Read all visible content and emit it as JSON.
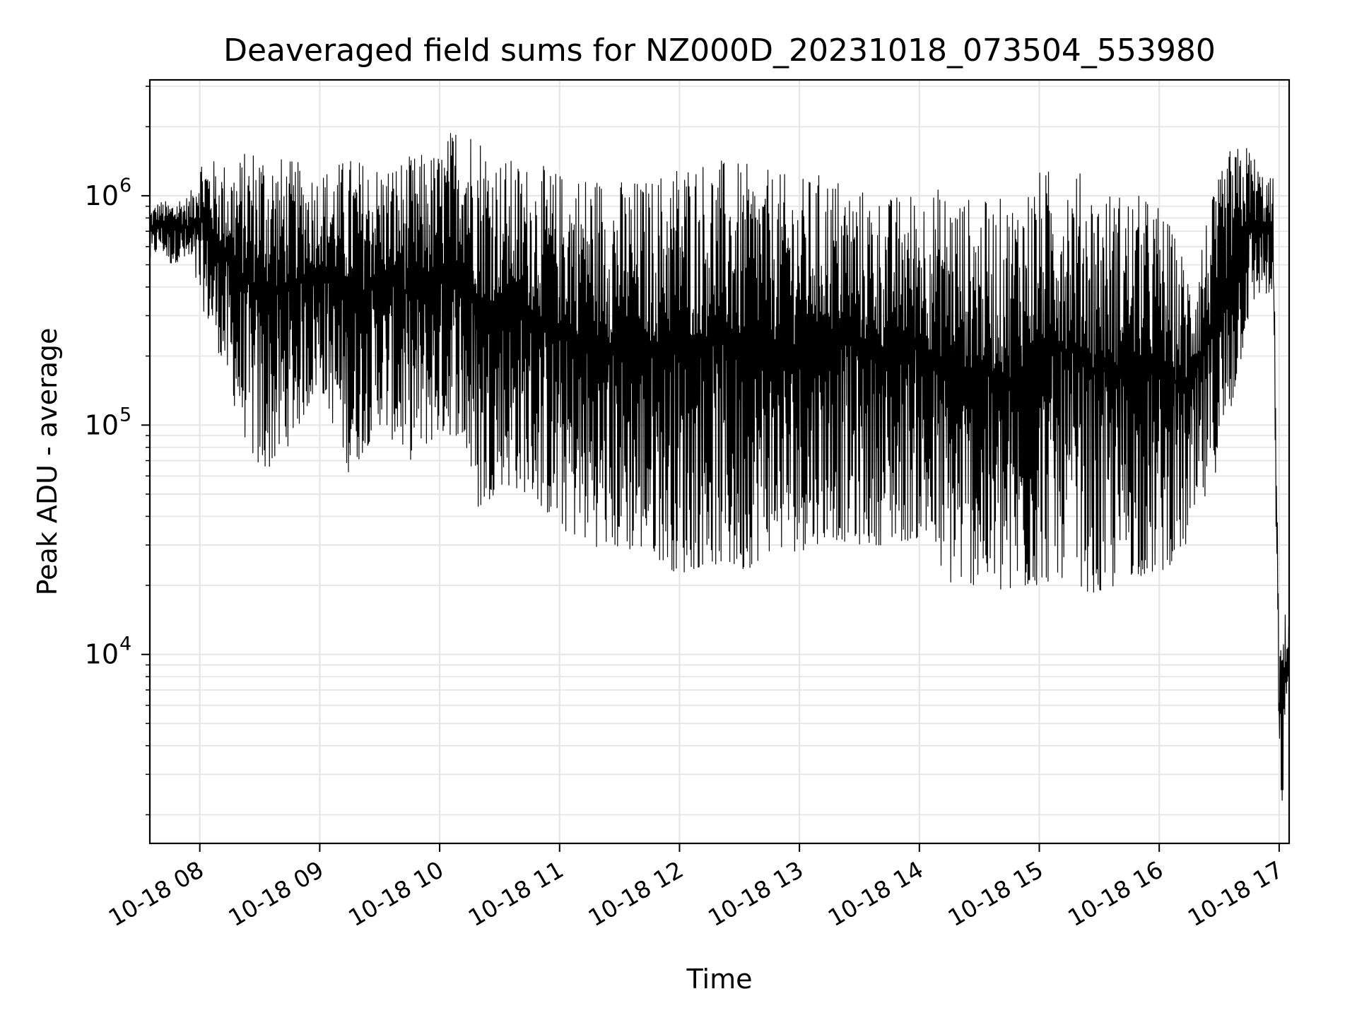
{
  "chart_data": {
    "type": "line",
    "title": "Deaveraged field sums for NZ000D_20231018_073504_553980",
    "xlabel": "Time",
    "ylabel": "Peak ADU - average",
    "yscale": "log",
    "grid": true,
    "line_color": "#000000",
    "grid_color": "#e6e6e6",
    "x_tick_labels": [
      "10-18 08",
      "10-18 09",
      "10-18 10",
      "10-18 11",
      "10-18 12",
      "10-18 13",
      "10-18 14",
      "10-18 15",
      "10-18 16",
      "10-18 17"
    ],
    "y_tick_labels": [
      {
        "base": "10",
        "exp": "4",
        "value": 10000
      },
      {
        "base": "10",
        "exp": "5",
        "value": 100000
      },
      {
        "base": "10",
        "exp": "6",
        "value": 1000000
      }
    ],
    "xlim": [
      "2023-10-18 07:35",
      "2023-10-18 17:05"
    ],
    "ylim": [
      1500,
      3200000
    ],
    "series": [
      {
        "x": [
          "2023-10-18 07:35",
          "2023-10-18 07:40",
          "2023-10-18 07:45",
          "2023-10-18 07:50",
          "2023-10-18 07:55",
          "2023-10-18 08:00",
          "2023-10-18 08:10",
          "2023-10-18 08:20",
          "2023-10-18 08:30",
          "2023-10-18 08:40",
          "2023-10-18 08:50",
          "2023-10-18 09:00",
          "2023-10-18 09:15",
          "2023-10-18 09:30",
          "2023-10-18 09:45",
          "2023-10-18 10:00",
          "2023-10-18 10:10",
          "2023-10-18 10:20",
          "2023-10-18 10:30",
          "2023-10-18 10:45",
          "2023-10-18 11:00",
          "2023-10-18 11:15",
          "2023-10-18 11:30",
          "2023-10-18 11:45",
          "2023-10-18 12:00",
          "2023-10-18 12:15",
          "2023-10-18 12:30",
          "2023-10-18 12:45",
          "2023-10-18 13:00",
          "2023-10-18 13:15",
          "2023-10-18 13:30",
          "2023-10-18 13:45",
          "2023-10-18 14:00",
          "2023-10-18 14:15",
          "2023-10-18 14:30",
          "2023-10-18 14:45",
          "2023-10-18 15:00",
          "2023-10-18 15:15",
          "2023-10-18 15:30",
          "2023-10-18 15:45",
          "2023-10-18 16:00",
          "2023-10-18 16:15",
          "2023-10-18 16:25",
          "2023-10-18 16:35",
          "2023-10-18 16:45",
          "2023-10-18 16:52",
          "2023-10-18 16:57",
          "2023-10-18 17:00",
          "2023-10-18 17:02",
          "2023-10-18 17:05"
        ],
        "low": [
          500000,
          600000,
          500000,
          520000,
          500000,
          350000,
          200000,
          100000,
          60000,
          70000,
          100000,
          150000,
          60000,
          100000,
          70000,
          90000,
          90000,
          40000,
          55000,
          50000,
          35000,
          30000,
          28000,
          28000,
          22000,
          25000,
          22000,
          28000,
          28000,
          32000,
          30000,
          30000,
          32000,
          20000,
          20000,
          17000,
          20000,
          22000,
          17000,
          22000,
          22000,
          30000,
          50000,
          100000,
          300000,
          400000,
          300000,
          3000,
          2000,
          10000
        ],
        "high": [
          900000,
          950000,
          950000,
          1000000,
          1000000,
          1550000,
          1400000,
          1500000,
          1800000,
          1500000,
          1400000,
          1300000,
          1500000,
          1400000,
          1500000,
          1600000,
          2300000,
          2000000,
          1500000,
          1400000,
          1300000,
          1300000,
          1200000,
          1200000,
          1500000,
          1500000,
          1400000,
          1300000,
          1200000,
          1300000,
          1100000,
          1000000,
          1100000,
          1100000,
          950000,
          1000000,
          1300000,
          1400000,
          1100000,
          1050000,
          950000,
          500000,
          900000,
          1600000,
          1700000,
          1250000,
          1200000,
          9000,
          16000,
          14000
        ]
      }
    ]
  }
}
